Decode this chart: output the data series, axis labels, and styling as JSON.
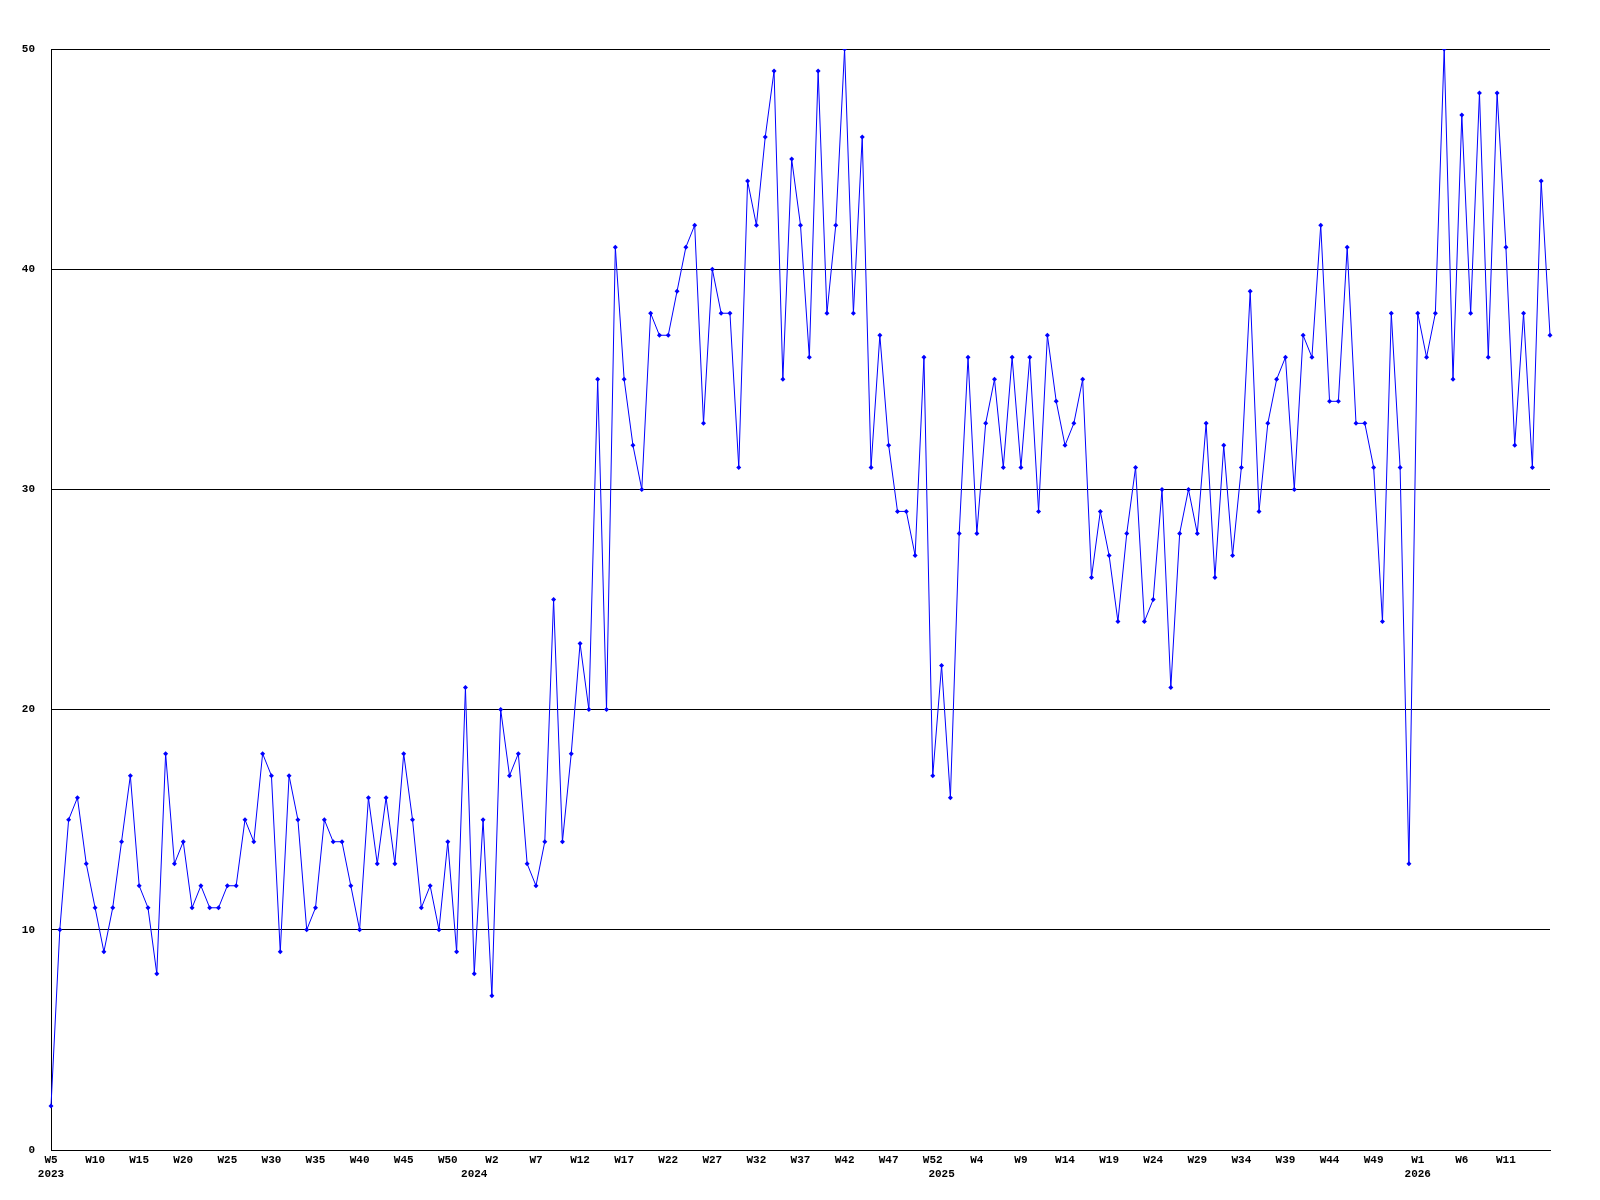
{
  "chart_data": {
    "type": "line",
    "categories": [
      "W5\n2023",
      null,
      null,
      null,
      null,
      "W10",
      null,
      null,
      null,
      null,
      "W15",
      null,
      null,
      null,
      null,
      "W20",
      null,
      null,
      null,
      null,
      "W25",
      null,
      null,
      null,
      null,
      "W30",
      null,
      null,
      null,
      null,
      "W35",
      null,
      null,
      null,
      null,
      "W40",
      null,
      null,
      null,
      null,
      "W45",
      null,
      null,
      null,
      null,
      "W50",
      null,
      null,
      "\n2024",
      null,
      "W2",
      null,
      null,
      null,
      null,
      "W7",
      null,
      null,
      null,
      null,
      "W12",
      null,
      null,
      null,
      null,
      "W17",
      null,
      null,
      null,
      null,
      "W22",
      null,
      null,
      null,
      null,
      "W27",
      null,
      null,
      null,
      null,
      "W32",
      null,
      null,
      null,
      null,
      "W37",
      null,
      null,
      null,
      null,
      "W42",
      null,
      null,
      null,
      null,
      "W47",
      null,
      null,
      null,
      null,
      "W52",
      "\n2025",
      null,
      null,
      null,
      "W4",
      null,
      null,
      null,
      null,
      "W9",
      null,
      null,
      null,
      null,
      "W14",
      null,
      null,
      null,
      null,
      "W19",
      null,
      null,
      null,
      null,
      "W24",
      null,
      null,
      null,
      null,
      "W29",
      null,
      null,
      null,
      null,
      "W34",
      null,
      null,
      null,
      null,
      "W39",
      null,
      null,
      null,
      null,
      "W44",
      null,
      null,
      null,
      null,
      "W49",
      null,
      null,
      null,
      null,
      "W1\n2026",
      null,
      null,
      null,
      null,
      "W6",
      null,
      null,
      null,
      null,
      "W11",
      null,
      null,
      null,
      null,
      null
    ],
    "series": [
      {
        "color": "#0000ff",
        "values": [
          2,
          10,
          15,
          16,
          13,
          11,
          9,
          11,
          14,
          17,
          12,
          11,
          8,
          18,
          13,
          14,
          11,
          12,
          11,
          11,
          12,
          12,
          15,
          14,
          18,
          17,
          9,
          17,
          15,
          10,
          11,
          15,
          14,
          14,
          12,
          10,
          16,
          13,
          16,
          13,
          18,
          15,
          11,
          12,
          10,
          14,
          9,
          21,
          8,
          15,
          7,
          20,
          17,
          18,
          13,
          12,
          14,
          25,
          14,
          18,
          23,
          20,
          35,
          20,
          41,
          35,
          32,
          30,
          38,
          37,
          37,
          39,
          41,
          42,
          33,
          40,
          38,
          38,
          31,
          44,
          42,
          46,
          49,
          35,
          45,
          42,
          36,
          49,
          38,
          42,
          50,
          38,
          46,
          31,
          37,
          32,
          29,
          29,
          27,
          36,
          17,
          22,
          16,
          28,
          36,
          28,
          33,
          35,
          31,
          36,
          31,
          36,
          29,
          37,
          34,
          32,
          33,
          35,
          26,
          29,
          27,
          24,
          28,
          31,
          24,
          25,
          30,
          21,
          28,
          30,
          28,
          33,
          26,
          32,
          27,
          31,
          39,
          29,
          33,
          35,
          36,
          30,
          37,
          36,
          42,
          34,
          34,
          41,
          33,
          33,
          31,
          24,
          38,
          31,
          13,
          38,
          36,
          38,
          50,
          35,
          47,
          38,
          48,
          36,
          48,
          41,
          32,
          38,
          31,
          44,
          37
        ]
      }
    ],
    "ylim": [
      0,
      50
    ],
    "yticks": [
      0,
      10,
      20,
      30,
      40,
      50
    ],
    "grid": "y",
    "marker": "diamond",
    "line_style": "solid"
  }
}
